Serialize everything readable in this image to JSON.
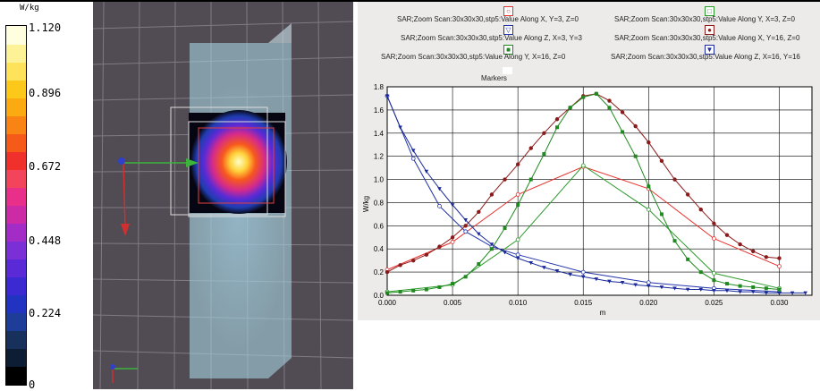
{
  "colorbar": {
    "unit": "W/kg",
    "ticks": [
      "1.120",
      "0.896",
      "0.672",
      "0.448",
      "0.224",
      "0"
    ],
    "colors": [
      "#000000",
      "#0d1d33",
      "#17305c",
      "#1e3d99",
      "#2233c2",
      "#3b2ad1",
      "#5a2ad6",
      "#7b2fd6",
      "#a32cc7",
      "#cc2ba5",
      "#e8308a",
      "#f2445a",
      "#f0302b",
      "#f55a19",
      "#f98313",
      "#fbab11",
      "#fcc81a",
      "#fde25a",
      "#fef296",
      "#ffffe0"
    ]
  },
  "legend": [
    {
      "label": "SAR;Zoom Scan:30x30x30,stp5:Value Along X, Y=3, Z=0",
      "marker": "circle-open",
      "color": "#e8302c"
    },
    {
      "label": "SAR;Zoom Scan:30x30x30,stp5:Value Along Y, X=3, Z=0",
      "marker": "square-open",
      "color": "#2b9a2b"
    },
    {
      "label": "SAR;Zoom Scan:30x30x30,stp5:Value Along Z, X=3, Y=3",
      "marker": "triangle-open",
      "color": "#2233aa"
    },
    {
      "label": "SAR;Zoom Scan:30x30x30,stp5:Value Along X, Y=16, Z=0",
      "marker": "circle-filled",
      "color": "#8b1a1a"
    },
    {
      "label": "SAR;Zoom Scan:30x30x30,stp5:Value Along Y, X=16, Z=0",
      "marker": "square-filled",
      "color": "#1f8a1f"
    },
    {
      "label": "SAR;Zoom Scan:30x30x30,stp5:Value Along Z, X=16, Y=16",
      "marker": "triangle-filled",
      "color": "#1a2a9a"
    }
  ],
  "markers_label": "Markers",
  "chart_data": {
    "type": "line",
    "xlabel": "m",
    "ylabel": "W/kg",
    "xlim": [
      0.0,
      0.0325
    ],
    "ylim": [
      0.0,
      1.8
    ],
    "xticks": [
      "0.000",
      "0.005",
      "0.010",
      "0.015",
      "0.020",
      "0.025",
      "0.030"
    ],
    "yticks": [
      "0.0",
      "0.2",
      "0.4",
      "0.6",
      "0.8",
      "1.0",
      "1.2",
      "1.4",
      "1.6",
      "1.8"
    ],
    "grid": true,
    "series": [
      {
        "name": "SAR;Zoom Scan:30x30x30,stp5:Value Along X, Y=3, Z=0",
        "color": "#e8302c",
        "marker": "none",
        "x": [
          0.0,
          0.005,
          0.01,
          0.015,
          0.02,
          0.025,
          0.03
        ],
        "y": [
          0.22,
          0.46,
          0.87,
          1.11,
          0.92,
          0.49,
          0.25
        ]
      },
      {
        "name": "SAR;Zoom Scan:30x30x30,stp5:Value Along Y, X=3, Z=0",
        "color": "#2b9a2b",
        "marker": "none",
        "x": [
          0.0,
          0.005,
          0.01,
          0.015,
          0.02,
          0.025,
          0.03
        ],
        "y": [
          0.03,
          0.09,
          0.48,
          1.12,
          0.74,
          0.19,
          0.06
        ]
      },
      {
        "name": "SAR;Zoom Scan:30x30x30,stp5:Value Along Z, X=3, Y=3",
        "color": "#2233aa",
        "marker": "none",
        "x": [
          0.0,
          0.002,
          0.004,
          0.006,
          0.008,
          0.01,
          0.015,
          0.02,
          0.025,
          0.03
        ],
        "y": [
          1.72,
          1.18,
          0.77,
          0.55,
          0.42,
          0.35,
          0.2,
          0.11,
          0.06,
          0.03
        ]
      },
      {
        "name": "SAR;Zoom Scan:30x30x30,stp5:Value Along X, Y=16, Z=0",
        "color": "#8b1a1a",
        "marker": "circle",
        "x": [
          0.0,
          0.001,
          0.002,
          0.003,
          0.004,
          0.005,
          0.006,
          0.007,
          0.008,
          0.009,
          0.01,
          0.011,
          0.012,
          0.013,
          0.014,
          0.015,
          0.016,
          0.017,
          0.018,
          0.019,
          0.02,
          0.021,
          0.022,
          0.023,
          0.024,
          0.025,
          0.026,
          0.027,
          0.028,
          0.029,
          0.03
        ],
        "y": [
          0.2,
          0.26,
          0.3,
          0.35,
          0.42,
          0.5,
          0.6,
          0.72,
          0.87,
          1.0,
          1.13,
          1.27,
          1.4,
          1.52,
          1.62,
          1.72,
          1.74,
          1.68,
          1.58,
          1.46,
          1.32,
          1.16,
          1.0,
          0.87,
          0.74,
          0.62,
          0.52,
          0.44,
          0.38,
          0.33,
          0.32
        ]
      },
      {
        "name": "SAR;Zoom Scan:30x30x30,stp5:Value Along Y, X=16, Z=0",
        "color": "#1f8a1f",
        "marker": "square",
        "x": [
          0.0,
          0.001,
          0.002,
          0.003,
          0.004,
          0.005,
          0.006,
          0.007,
          0.008,
          0.009,
          0.01,
          0.011,
          0.012,
          0.013,
          0.014,
          0.015,
          0.016,
          0.017,
          0.018,
          0.019,
          0.02,
          0.021,
          0.022,
          0.023,
          0.024,
          0.025,
          0.026,
          0.027,
          0.028,
          0.029,
          0.03
        ],
        "y": [
          0.02,
          0.03,
          0.04,
          0.05,
          0.07,
          0.1,
          0.16,
          0.27,
          0.4,
          0.58,
          0.78,
          1.0,
          1.22,
          1.45,
          1.62,
          1.71,
          1.74,
          1.62,
          1.41,
          1.2,
          0.94,
          0.7,
          0.47,
          0.31,
          0.2,
          0.13,
          0.1,
          0.08,
          0.07,
          0.06,
          0.05
        ]
      },
      {
        "name": "SAR;Zoom Scan:30x30x30,stp5:Value Along Z, X=16, Y=16",
        "color": "#1a2a9a",
        "marker": "triangle",
        "x": [
          0.0,
          0.001,
          0.002,
          0.003,
          0.004,
          0.005,
          0.006,
          0.007,
          0.008,
          0.009,
          0.01,
          0.011,
          0.012,
          0.013,
          0.014,
          0.015,
          0.016,
          0.017,
          0.018,
          0.019,
          0.02,
          0.021,
          0.022,
          0.023,
          0.024,
          0.025,
          0.026,
          0.027,
          0.028,
          0.029,
          0.03,
          0.031,
          0.032
        ],
        "y": [
          1.72,
          1.45,
          1.25,
          1.07,
          0.92,
          0.78,
          0.65,
          0.53,
          0.44,
          0.37,
          0.32,
          0.28,
          0.24,
          0.21,
          0.18,
          0.16,
          0.14,
          0.12,
          0.11,
          0.09,
          0.08,
          0.07,
          0.06,
          0.05,
          0.05,
          0.04,
          0.04,
          0.03,
          0.03,
          0.02,
          0.02,
          0.02,
          0.02
        ]
      }
    ]
  }
}
